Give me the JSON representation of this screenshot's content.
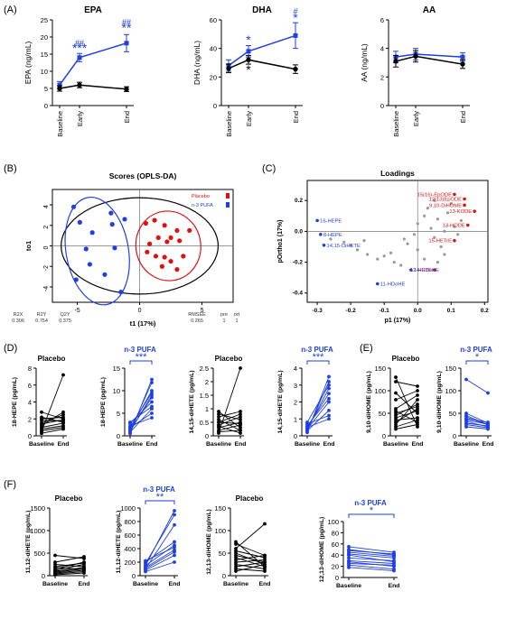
{
  "colors": {
    "placebo": "#000000",
    "n3": "#1f3fe0",
    "red": "#e01010",
    "grey": "#999999"
  },
  "panel_labels": {
    "A": "(A)",
    "B": "(B)",
    "C": "(C)",
    "D": "(D)",
    "E": "(E)",
    "F": "(F)"
  },
  "chart_data": [
    {
      "type": "line",
      "id": "A1",
      "title": "EPA",
      "ylabel": "EPA (ng/mL)",
      "ylim": [
        0,
        25
      ],
      "yticks": [
        "0",
        "5",
        "10",
        "15",
        "20",
        "25"
      ],
      "categories": [
        "Baseline",
        "Early",
        "End"
      ],
      "series": [
        {
          "group": "n3",
          "values": [
            6,
            14,
            18.2
          ],
          "err": [
            1,
            1.2,
            2.5
          ]
        },
        {
          "group": "placebo",
          "values": [
            5,
            6,
            4.8
          ],
          "err": [
            0.8,
            0.8,
            0.7
          ]
        }
      ],
      "annotations": [
        {
          "text": "##",
          "cat": 1,
          "value": 17.5,
          "group": "n3",
          "size": 9
        },
        {
          "text": "***",
          "cat": 1,
          "value": 15.5,
          "group": "n3",
          "size": 14
        },
        {
          "text": "##",
          "cat": 2,
          "value": 23.5,
          "group": "n3",
          "size": 9
        },
        {
          "text": "**",
          "cat": 2,
          "value": 21.5,
          "group": "n3",
          "size": 14
        }
      ]
    },
    {
      "type": "line",
      "id": "A2",
      "title": "DHA",
      "ylabel": "DHA (ng/mL)",
      "ylim": [
        0,
        60
      ],
      "yticks": [
        "0",
        "20",
        "40",
        "60"
      ],
      "categories": [
        "Baseline",
        "Early",
        "End"
      ],
      "series": [
        {
          "group": "n3",
          "values": [
            28,
            38,
            49
          ],
          "err": [
            4,
            4,
            9
          ]
        },
        {
          "group": "placebo",
          "values": [
            26,
            32,
            25.5
          ],
          "err": [
            3,
            3,
            3
          ]
        }
      ],
      "annotations": [
        {
          "text": "*",
          "cat": 1,
          "value": 43,
          "group": "n3",
          "size": 14
        },
        {
          "text": "*",
          "cat": 1,
          "value": 22,
          "group": "placebo",
          "size": 14
        },
        {
          "text": "#",
          "cat": 2,
          "value": 64,
          "group": "n3",
          "size": 9
        },
        {
          "text": "*",
          "cat": 2,
          "value": 58.5,
          "group": "n3",
          "size": 14
        }
      ]
    },
    {
      "type": "line",
      "id": "A3",
      "title": "AA",
      "ylabel": "AA (ng/mL)",
      "ylim": [
        0,
        6
      ],
      "yticks": [
        "0",
        "2",
        "4",
        "6"
      ],
      "categories": [
        "Baseline",
        "Early",
        "End"
      ],
      "series": [
        {
          "group": "n3",
          "values": [
            3.4,
            3.6,
            3.4
          ],
          "err": [
            0.4,
            0.4,
            0.3
          ]
        },
        {
          "group": "placebo",
          "values": [
            3.1,
            3.45,
            2.9
          ],
          "err": [
            0.4,
            0.4,
            0.3
          ]
        }
      ],
      "annotations": []
    },
    {
      "type": "scatter",
      "id": "B",
      "title": "Scores (OPLS-DA)",
      "xlabel": "t1 (17%)",
      "ylabel": "to1",
      "xlim": [
        -7,
        7.5
      ],
      "ylim": [
        -5.5,
        5.5
      ],
      "xticks": [
        -5,
        0,
        5
      ],
      "yticks": [
        4,
        2,
        0,
        -2,
        -4
      ],
      "legend": [
        {
          "label": "Placebo",
          "group": "red"
        },
        {
          "label": "n-3 PUFA",
          "group": "n3"
        }
      ],
      "points_red": [
        [
          0.5,
          2.2
        ],
        [
          1.2,
          2.5
        ],
        [
          2,
          2
        ],
        [
          3,
          1.5
        ],
        [
          1.5,
          0.8
        ],
        [
          2.5,
          0.8
        ],
        [
          4,
          1.5
        ],
        [
          0.8,
          0.2
        ],
        [
          2.2,
          0.4
        ],
        [
          3.2,
          0.5
        ],
        [
          1.3,
          -1
        ],
        [
          2,
          -1.1
        ],
        [
          3.5,
          -1
        ],
        [
          2.5,
          -1.5
        ],
        [
          1.8,
          -2
        ],
        [
          3,
          -2.3
        ],
        [
          0.6,
          -0.6
        ]
      ],
      "points_blue": [
        [
          -5.3,
          3.8
        ],
        [
          -4.8,
          2.3
        ],
        [
          -3.8,
          1.3
        ],
        [
          -2.3,
          3.2
        ],
        [
          -2.2,
          2.1
        ],
        [
          -1.2,
          2.6
        ],
        [
          -4.3,
          -0.3
        ],
        [
          -2,
          -0.2
        ],
        [
          -4,
          -1.8
        ],
        [
          -2.8,
          -2.8
        ],
        [
          -5.1,
          -3.3
        ],
        [
          -1.5,
          -4.5
        ]
      ],
      "ellipses": [
        {
          "group": "black",
          "cx": 0,
          "cy": 0,
          "rx": 6.3,
          "ry": 4.7,
          "rot": 0
        },
        {
          "group": "red",
          "cx": 2.3,
          "cy": 0,
          "rx": 2.6,
          "ry": 3.4,
          "rot": -10
        },
        {
          "group": "n3",
          "cx": -3.4,
          "cy": -0.5,
          "rx": 2.5,
          "ry": 5.3,
          "rot": -10
        }
      ],
      "stats_headers": [
        "R2X",
        "R2Y",
        "Q2Y",
        "RMSEE",
        "pre",
        "ort"
      ],
      "stats_values": [
        "0.306",
        "0.754",
        "0.375",
        "0.265",
        "1",
        "1"
      ]
    },
    {
      "type": "scatter",
      "id": "C",
      "title": "Loadings",
      "xlabel": "p1 (17%)",
      "ylabel": "pOrtho1 (17%)",
      "xlim": [
        -0.33,
        0.21
      ],
      "ylim": [
        -0.46,
        0.33
      ],
      "xticks": [
        "-0.3",
        "-0.2",
        "-0.1",
        "0.0",
        "0.1",
        "0.2"
      ],
      "yticks": [
        "0.2",
        "0.0",
        "-0.2",
        "-0.4"
      ],
      "xtick_vals": [
        -0.3,
        -0.2,
        -0.1,
        0.0,
        0.1,
        0.2
      ],
      "ytick_vals": [
        0.2,
        0.0,
        -0.2,
        -0.4
      ],
      "labeled_points": [
        {
          "label": "15(16)-EpODE",
          "x": 0.11,
          "y": 0.24,
          "group": "red"
        },
        {
          "label": "12(13)EpODE",
          "x": 0.14,
          "y": 0.21,
          "group": "red"
        },
        {
          "label": "9,10-DiHOME",
          "x": 0.14,
          "y": 0.17,
          "group": "red"
        },
        {
          "label": "13-KODE",
          "x": 0.17,
          "y": 0.13,
          "group": "red"
        },
        {
          "label": "13-HODE",
          "x": 0.15,
          "y": 0.04,
          "group": "red"
        },
        {
          "label": "15-HETrE",
          "x": 0.11,
          "y": -0.06,
          "group": "red"
        },
        {
          "label": "12-HETE",
          "x": 0.05,
          "y": -0.25,
          "group": "red"
        },
        {
          "label": "16-HEPE",
          "x": -0.3,
          "y": 0.07,
          "group": "n3"
        },
        {
          "label": "8-HEPE",
          "x": -0.29,
          "y": -0.02,
          "group": "n3"
        },
        {
          "label": "14,15-DiHETE",
          "x": -0.28,
          "y": -0.09,
          "group": "n3"
        },
        {
          "label": "14-HDoHE",
          "x": -0.02,
          "y": -0.25,
          "group": "n3"
        },
        {
          "label": "11-HDoHE",
          "x": -0.12,
          "y": -0.34,
          "group": "n3"
        }
      ],
      "grey_points": [
        [
          -0.26,
          -0.05
        ],
        [
          -0.22,
          -0.07
        ],
        [
          -0.2,
          -0.09
        ],
        [
          -0.18,
          -0.12
        ],
        [
          -0.15,
          -0.15
        ],
        [
          -0.12,
          -0.18
        ],
        [
          -0.1,
          -0.16
        ],
        [
          -0.08,
          -0.14
        ],
        [
          -0.07,
          -0.2
        ],
        [
          -0.05,
          -0.22
        ],
        [
          -0.03,
          -0.08
        ],
        [
          -0.01,
          -0.02
        ],
        [
          0.0,
          0.05
        ],
        [
          0.02,
          0.1
        ],
        [
          0.03,
          0.15
        ],
        [
          0.04,
          0.02
        ],
        [
          0.05,
          -0.04
        ],
        [
          0.06,
          0.08
        ],
        [
          0.07,
          -0.1
        ],
        [
          0.08,
          -0.15
        ],
        [
          0.09,
          0.12
        ],
        [
          0.1,
          0.18
        ],
        [
          0.11,
          0.03
        ],
        [
          0.12,
          -0.02
        ],
        [
          0.05,
          0.2
        ],
        [
          0.0,
          -0.12
        ],
        [
          -0.04,
          -0.05
        ],
        [
          0.08,
          0.0
        ],
        [
          0.13,
          0.07
        ],
        [
          -0.16,
          -0.06
        ],
        [
          0.02,
          -0.18
        ],
        [
          0.06,
          -0.2
        ]
      ]
    },
    {
      "type": "paired",
      "id": "D1",
      "title": "Placebo",
      "group": "placebo",
      "ylabel": "18-HEPE (pg/mL)",
      "ylim": [
        0,
        8
      ],
      "yticks": [
        0,
        2,
        4,
        6,
        8
      ],
      "categories": [
        "Baseline",
        "End"
      ],
      "pairs": [
        [
          0.5,
          7.2
        ],
        [
          1.5,
          2.5
        ],
        [
          2,
          2.2
        ],
        [
          1,
          1.5
        ],
        [
          2.8,
          2
        ],
        [
          0.8,
          1.2
        ],
        [
          1.8,
          1.8
        ],
        [
          0.3,
          0.8
        ],
        [
          2.2,
          1.6
        ],
        [
          1.2,
          2.8
        ],
        [
          0.6,
          1
        ],
        [
          1.4,
          1.9
        ]
      ],
      "sig": ""
    },
    {
      "type": "paired",
      "id": "D2",
      "title": "n-3  PUFA",
      "group": "n3",
      "ylabel": "18-HEPE (pg/mL)",
      "ylim": [
        0,
        15
      ],
      "yticks": [
        0,
        5,
        10,
        15
      ],
      "categories": [
        "Baseline",
        "End"
      ],
      "pairs": [
        [
          0.5,
          12.5
        ],
        [
          1,
          11.8
        ],
        [
          1.5,
          10
        ],
        [
          2,
          9.5
        ],
        [
          1.2,
          8.5
        ],
        [
          2.8,
          7.5
        ],
        [
          0.8,
          6
        ],
        [
          1.8,
          5
        ],
        [
          2.2,
          4
        ],
        [
          3,
          6.5
        ],
        [
          1,
          9
        ]
      ],
      "sig": "***"
    },
    {
      "type": "paired",
      "id": "D3",
      "title": "Placebo",
      "group": "placebo",
      "ylabel": "14,15-diHETE (pg/mL)",
      "ylim": [
        0,
        2.5
      ],
      "yticks": [
        0,
        0.5,
        1,
        1.5,
        2,
        2.5
      ],
      "categories": [
        "Baseline",
        "End"
      ],
      "pairs": [
        [
          0.1,
          2.5
        ],
        [
          0.5,
          0.8
        ],
        [
          0.8,
          0.6
        ],
        [
          0.3,
          0.5
        ],
        [
          0.6,
          0.2
        ],
        [
          0.2,
          0.4
        ],
        [
          0.9,
          0.3
        ],
        [
          0.4,
          0.7
        ],
        [
          0.15,
          0.2
        ],
        [
          0.7,
          0.9
        ],
        [
          0.35,
          0.1
        ],
        [
          0.5,
          0.45
        ]
      ],
      "sig": ""
    },
    {
      "type": "paired",
      "id": "D4",
      "title": "n-3  PUFA",
      "group": "n3",
      "ylabel": "14,15-diHETE (pg/mL)",
      "ylim": [
        0,
        4
      ],
      "yticks": [
        0,
        1,
        2,
        3,
        4
      ],
      "categories": [
        "Baseline",
        "End"
      ],
      "pairs": [
        [
          0.2,
          3.5
        ],
        [
          0.3,
          3.2
        ],
        [
          0.4,
          2.8
        ],
        [
          0.5,
          2.5
        ],
        [
          0.6,
          2.2
        ],
        [
          0.3,
          1.5
        ],
        [
          0.7,
          1.2
        ],
        [
          0.5,
          1
        ],
        [
          0.4,
          2
        ],
        [
          0.8,
          3
        ]
      ],
      "sig": "***"
    },
    {
      "type": "paired",
      "id": "E1",
      "title": "Placebo",
      "group": "placebo",
      "ylabel": "9,10-diHOME (pg/mL)",
      "ylim": [
        0,
        150
      ],
      "yticks": [
        0,
        50,
        100,
        150
      ],
      "categories": [
        "Baseline",
        "End"
      ],
      "pairs": [
        [
          130,
          20
        ],
        [
          120,
          110
        ],
        [
          95,
          50
        ],
        [
          80,
          100
        ],
        [
          60,
          90
        ],
        [
          55,
          30
        ],
        [
          45,
          70
        ],
        [
          40,
          55
        ],
        [
          35,
          40
        ],
        [
          30,
          60
        ],
        [
          25,
          80
        ],
        [
          20,
          35
        ],
        [
          15,
          25
        ],
        [
          50,
          65
        ]
      ],
      "sig": ""
    },
    {
      "type": "paired",
      "id": "E2",
      "title": "n-3 PUFA",
      "group": "n3",
      "ylabel": "9,10-diHOME (pg/mL)",
      "ylim": [
        0,
        150
      ],
      "yticks": [
        0,
        50,
        100,
        150
      ],
      "categories": [
        "Baseline",
        "End"
      ],
      "pairs": [
        [
          125,
          95
        ],
        [
          50,
          28
        ],
        [
          45,
          25
        ],
        [
          38,
          30
        ],
        [
          32,
          20
        ],
        [
          28,
          22
        ],
        [
          25,
          18
        ],
        [
          20,
          15
        ],
        [
          35,
          26
        ],
        [
          42,
          24
        ]
      ],
      "sig": "*"
    },
    {
      "type": "paired",
      "id": "F1",
      "title": "Placebo",
      "group": "placebo",
      "ylabel": "11,12-diHETE (pg/mL)",
      "ylim": [
        0,
        1500
      ],
      "yticks": [
        0,
        500,
        1000,
        1500
      ],
      "categories": [
        "Baseline",
        "End"
      ],
      "pairs": [
        [
          450,
          380
        ],
        [
          300,
          420
        ],
        [
          250,
          200
        ],
        [
          200,
          280
        ],
        [
          150,
          300
        ],
        [
          100,
          180
        ],
        [
          80,
          150
        ],
        [
          60,
          120
        ],
        [
          40,
          90
        ],
        [
          20,
          60
        ],
        [
          120,
          250
        ],
        [
          180,
          140
        ]
      ],
      "sig": ""
    },
    {
      "type": "paired",
      "id": "F2",
      "title": "n-3 PUFA",
      "group": "n3",
      "ylabel": "11,12-diHETE (pg/mL)",
      "ylim": [
        0,
        1000
      ],
      "yticks": [
        0,
        200,
        400,
        600,
        800,
        1000
      ],
      "categories": [
        "Baseline",
        "End"
      ],
      "pairs": [
        [
          150,
          960
        ],
        [
          180,
          900
        ],
        [
          100,
          750
        ],
        [
          200,
          500
        ],
        [
          150,
          450
        ],
        [
          120,
          380
        ],
        [
          80,
          300
        ],
        [
          220,
          420
        ],
        [
          60,
          200
        ],
        [
          100,
          350
        ]
      ],
      "sig": "**"
    },
    {
      "type": "paired",
      "id": "F3",
      "title": "Placebo",
      "group": "placebo",
      "ylabel": "12,13-diHOME (pg/mL)",
      "ylim": [
        0,
        150
      ],
      "yticks": [
        0,
        50,
        100,
        150
      ],
      "categories": [
        "Baseline",
        "End"
      ],
      "pairs": [
        [
          75,
          20
        ],
        [
          60,
          115
        ],
        [
          55,
          40
        ],
        [
          50,
          25
        ],
        [
          45,
          30
        ],
        [
          40,
          20
        ],
        [
          35,
          45
        ],
        [
          30,
          35
        ],
        [
          25,
          15
        ],
        [
          20,
          30
        ],
        [
          15,
          10
        ],
        [
          70,
          45
        ],
        [
          10,
          25
        ]
      ],
      "sig": ""
    },
    {
      "type": "paired",
      "id": "F4",
      "title": "n-3 PUFA",
      "group": "n3",
      "ylabel": "12,13-diHOME (pg/mL)",
      "ylim": [
        0,
        100
      ],
      "yticks": [
        0,
        20,
        40,
        60,
        80,
        100
      ],
      "categories": [
        "Baseline",
        "End"
      ],
      "pairs": [
        [
          55,
          45
        ],
        [
          50,
          40
        ],
        [
          45,
          38
        ],
        [
          40,
          28
        ],
        [
          35,
          30
        ],
        [
          30,
          25
        ],
        [
          28,
          20
        ],
        [
          25,
          22
        ],
        [
          22,
          15
        ],
        [
          18,
          12
        ],
        [
          42,
          35
        ],
        [
          48,
          42
        ]
      ],
      "sig": "*"
    }
  ]
}
